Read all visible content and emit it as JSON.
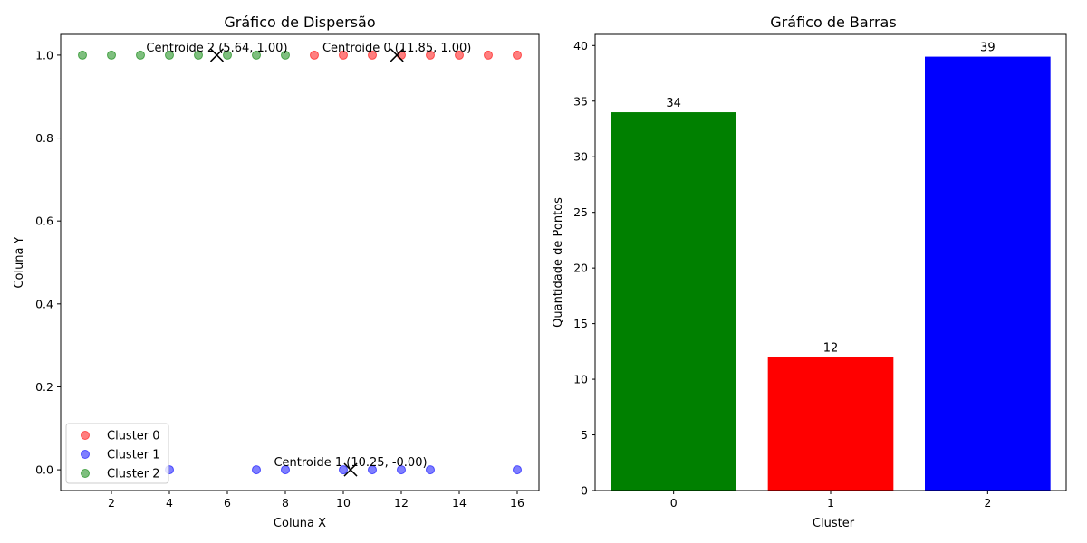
{
  "chart_data": [
    {
      "type": "scatter",
      "title": "Gráfico de Dispersão",
      "xlabel": "Coluna X",
      "ylabel": "Coluna Y",
      "xlim": [
        0.25,
        16.75
      ],
      "ylim": [
        -0.05,
        1.05
      ],
      "xticks": [
        2,
        4,
        6,
        8,
        10,
        12,
        14,
        16
      ],
      "yticks": [
        0.0,
        0.2,
        0.4,
        0.6,
        0.8,
        1.0
      ],
      "legend_position": "lower-left",
      "series": [
        {
          "name": "Cluster 0",
          "color": "#ff0000",
          "points": [
            [
              9,
              1
            ],
            [
              10,
              1
            ],
            [
              11,
              1
            ],
            [
              12,
              1
            ],
            [
              13,
              1
            ],
            [
              14,
              1
            ],
            [
              15,
              1
            ],
            [
              16,
              1
            ]
          ]
        },
        {
          "name": "Cluster 1",
          "color": "#0000ff",
          "points": [
            [
              4,
              0
            ],
            [
              7,
              0
            ],
            [
              8,
              0
            ],
            [
              10,
              0
            ],
            [
              11,
              0
            ],
            [
              12,
              0
            ],
            [
              13,
              0
            ],
            [
              16,
              0
            ]
          ]
        },
        {
          "name": "Cluster 2",
          "color": "#008000",
          "points": [
            [
              1,
              1
            ],
            [
              2,
              1
            ],
            [
              3,
              1
            ],
            [
              4,
              1
            ],
            [
              5,
              1
            ],
            [
              6,
              1
            ],
            [
              7,
              1
            ],
            [
              8,
              1
            ]
          ]
        }
      ],
      "centroids": [
        {
          "x": 11.85,
          "y": 1.0,
          "label": "Centroide 0 (11.85, 1.00)"
        },
        {
          "x": 10.25,
          "y": 0.0,
          "label": "Centroide 1 (10.25, -0.00)"
        },
        {
          "x": 5.64,
          "y": 1.0,
          "label": "Centroide 2 (5.64, 1.00)"
        }
      ]
    },
    {
      "type": "bar",
      "title": "Gráfico de Barras",
      "xlabel": "Cluster",
      "ylabel": "Quantidade de Pontos",
      "categories": [
        "0",
        "1",
        "2"
      ],
      "values": [
        34,
        12,
        39
      ],
      "colors": [
        "#008000",
        "#ff0000",
        "#0000ff"
      ],
      "ylim": [
        0,
        41
      ],
      "yticks": [
        0,
        5,
        10,
        15,
        20,
        25,
        30,
        35,
        40
      ]
    }
  ]
}
